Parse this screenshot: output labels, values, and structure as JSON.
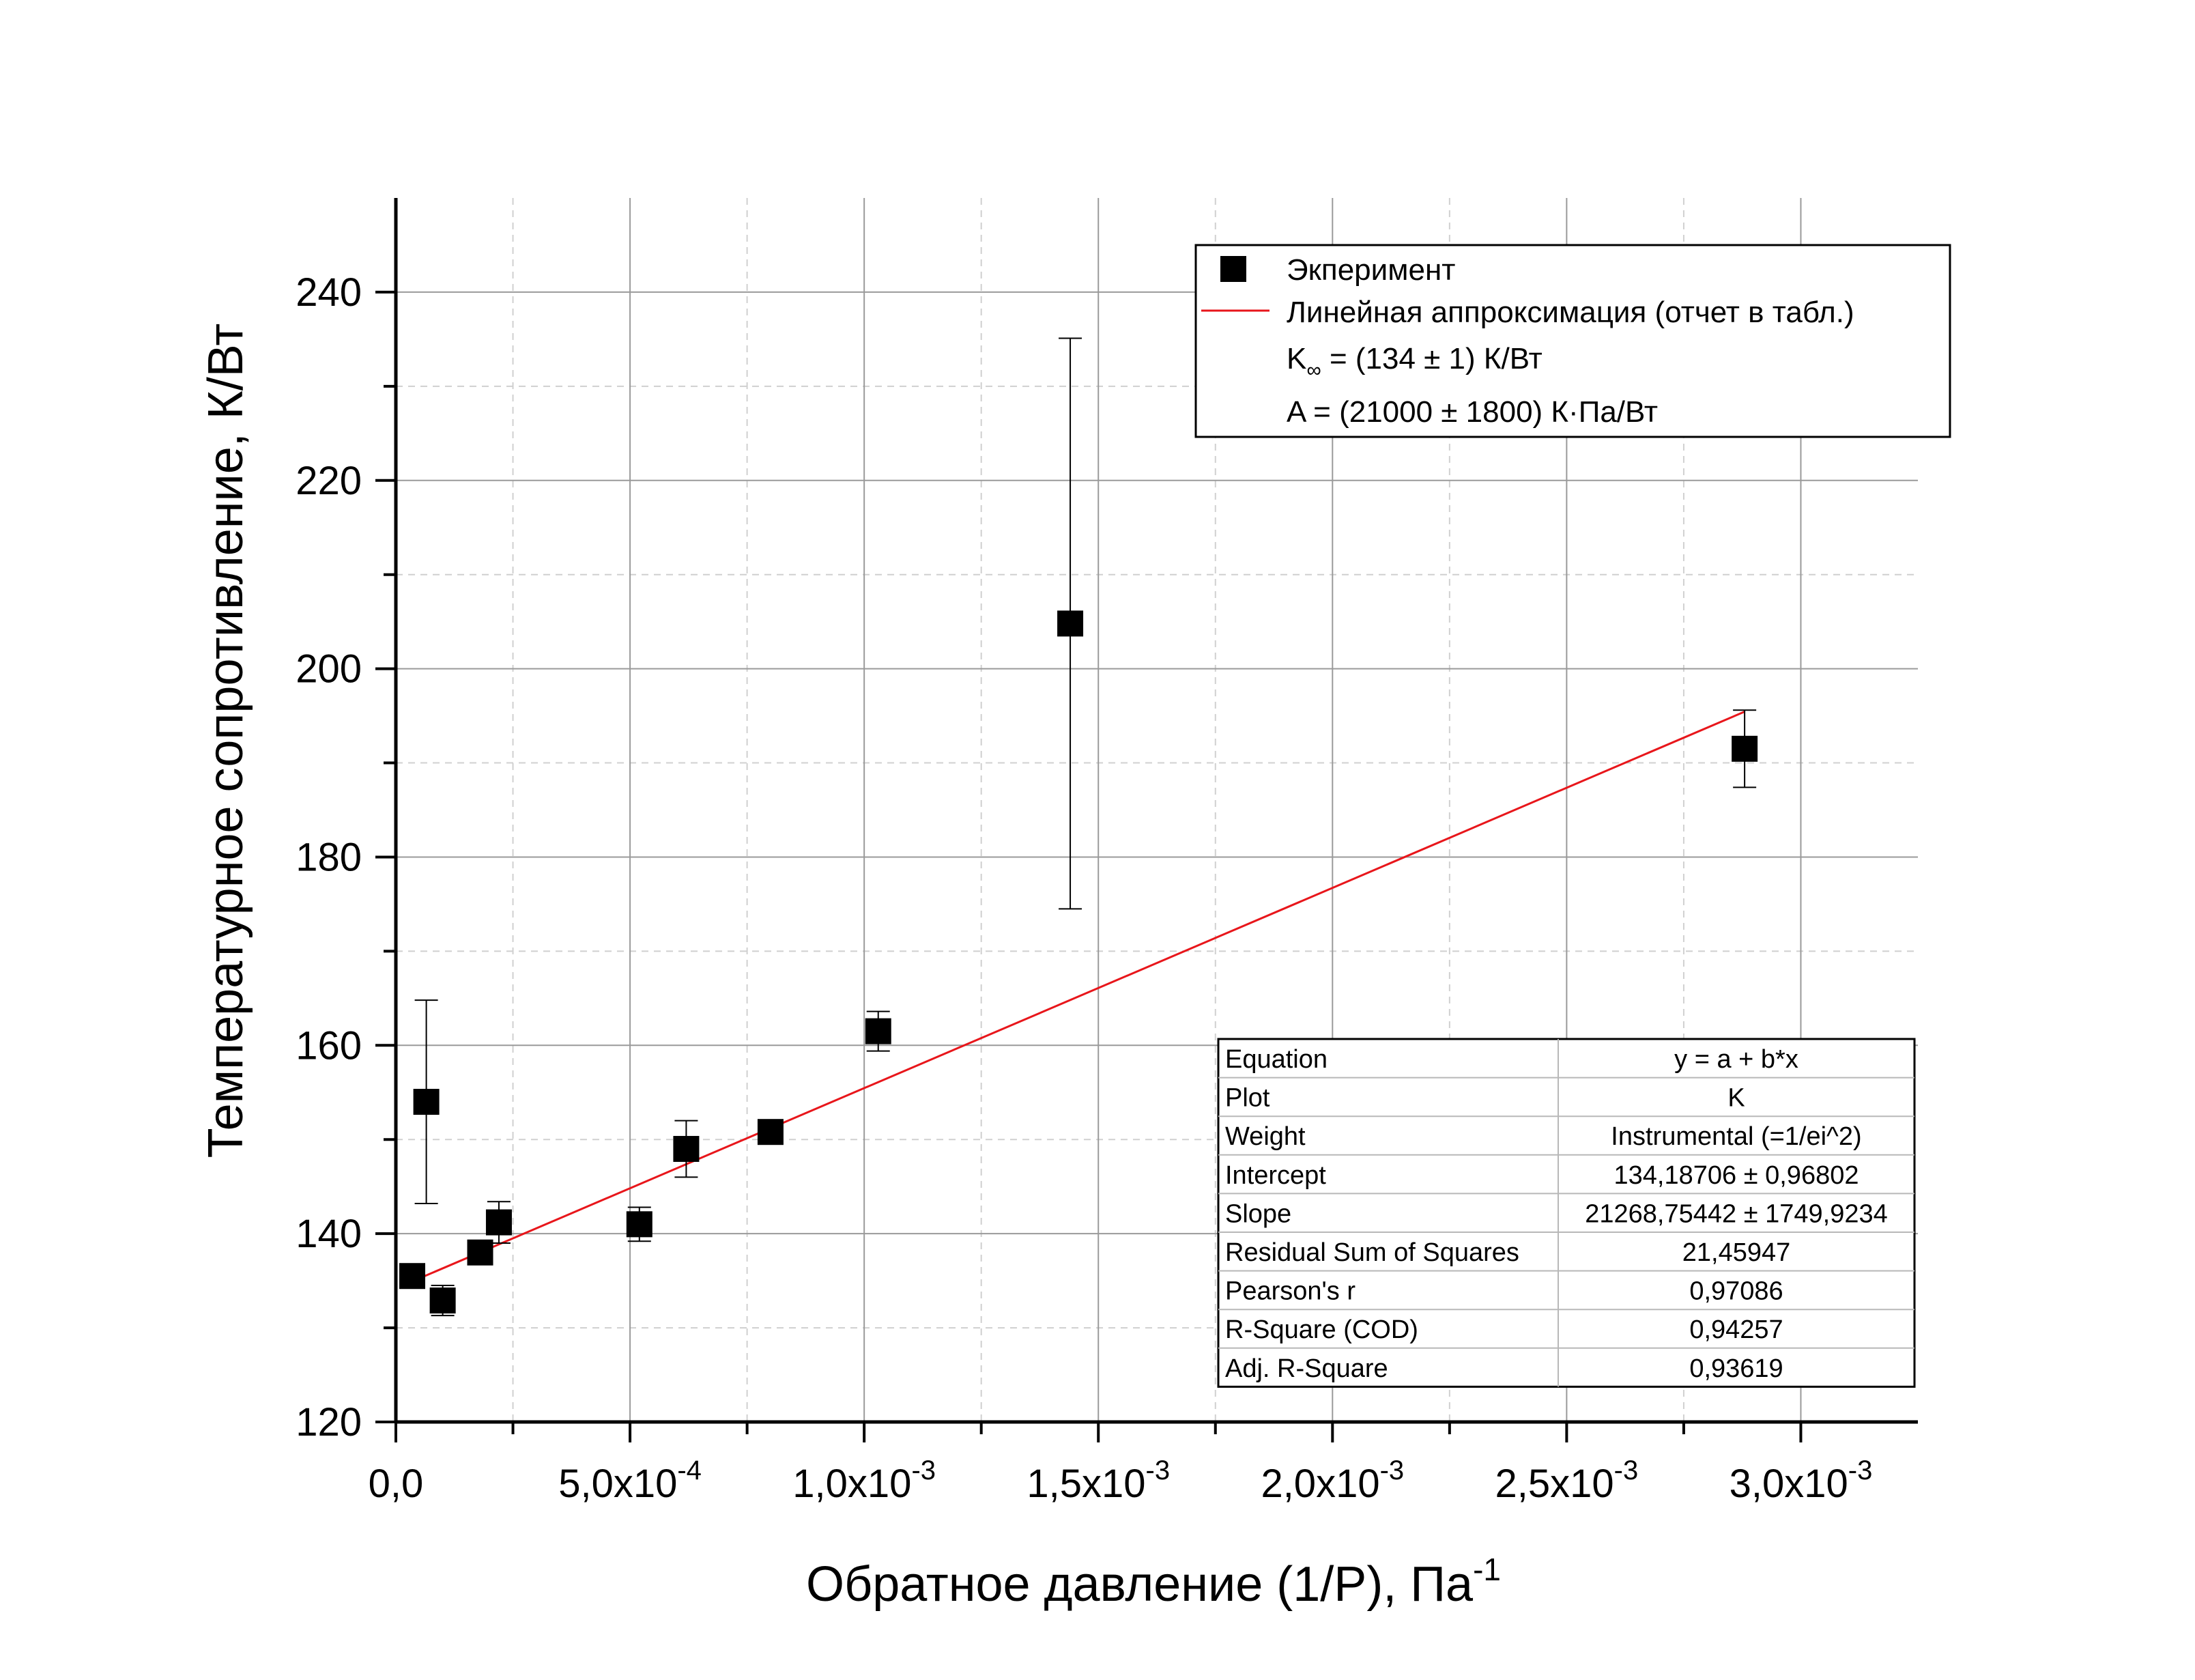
{
  "chart_data": {
    "type": "scatter",
    "xlabel": "Обратное давление (1/P), Па",
    "xlabel_sup": "-1",
    "ylabel": "Температурное сопротивление, К/Вт",
    "xlim": [
      0,
      0.00325
    ],
    "ylim": [
      120,
      250
    ],
    "grid": true,
    "x_ticks": [
      {
        "value": 0,
        "mantissa": "0,0",
        "exp": ""
      },
      {
        "value": 0.0005,
        "mantissa": "5,0x10",
        "exp": "-4"
      },
      {
        "value": 0.001,
        "mantissa": "1,0x10",
        "exp": "-3"
      },
      {
        "value": 0.0015,
        "mantissa": "1,5x10",
        "exp": "-3"
      },
      {
        "value": 0.002,
        "mantissa": "2,0x10",
        "exp": "-3"
      },
      {
        "value": 0.0025,
        "mantissa": "2,5x10",
        "exp": "-3"
      },
      {
        "value": 0.003,
        "mantissa": "3,0x10",
        "exp": "-3"
      }
    ],
    "y_ticks": [
      120,
      140,
      160,
      180,
      200,
      220,
      240
    ],
    "series": [
      {
        "name": "Экперимент",
        "kind": "scatter",
        "marker": "square",
        "color": "#000000",
        "points": [
          {
            "x": 3.5e-05,
            "y": 135.5,
            "err": 0
          },
          {
            "x": 6.5e-05,
            "y": 154.0,
            "err": 10.8
          },
          {
            "x": 0.0001,
            "y": 132.9,
            "err": 1.6
          },
          {
            "x": 0.00018,
            "y": 138.0,
            "err": 0
          },
          {
            "x": 0.00022,
            "y": 141.2,
            "err": 2.2
          },
          {
            "x": 0.00052,
            "y": 141.0,
            "err": 1.8
          },
          {
            "x": 0.00062,
            "y": 149.0,
            "err": 3.0
          },
          {
            "x": 0.0008,
            "y": 150.8,
            "err": 1.2
          },
          {
            "x": 0.00103,
            "y": 161.5,
            "err": 2.1
          },
          {
            "x": 0.00144,
            "y": 204.8,
            "err": 30.3
          },
          {
            "x": 0.00288,
            "y": 191.5,
            "err": 4.1
          }
        ]
      },
      {
        "name": "Линейная аппроксимация (отчет в табл.)",
        "kind": "line",
        "color": "#e8161b",
        "x_range": [
          3.5e-05,
          0.00288
        ],
        "intercept": 134.18706,
        "slope": 21268.75442
      }
    ],
    "legend": {
      "position": "top-right",
      "entries": [
        {
          "text": "Экперимент",
          "symbol": "square"
        },
        {
          "text": "Линейная аппроксимация (отчет в табл.)",
          "symbol": "line"
        },
        {
          "text": "K",
          "sub": "∞",
          "rest": " = (134 ± 1) К/Вт"
        },
        {
          "text": "A = (21000 ± 1800) К·Па/Вт"
        }
      ]
    },
    "fit_table": {
      "position": "bottom-right",
      "rows": [
        [
          "Equation",
          "y = a + b*x"
        ],
        [
          "Plot",
          "K"
        ],
        [
          "Weight",
          "Instrumental (=1/ei^2)"
        ],
        [
          "Intercept",
          "134,18706 ± 0,96802"
        ],
        [
          "Slope",
          "21268,75442 ± 1749,9234"
        ],
        [
          "Residual Sum of Squares",
          "21,45947"
        ],
        [
          "Pearson's r",
          "0,97086"
        ],
        [
          "R-Square (COD)",
          "0,94257"
        ],
        [
          "Adj. R-Square",
          "0,93619"
        ]
      ]
    }
  }
}
